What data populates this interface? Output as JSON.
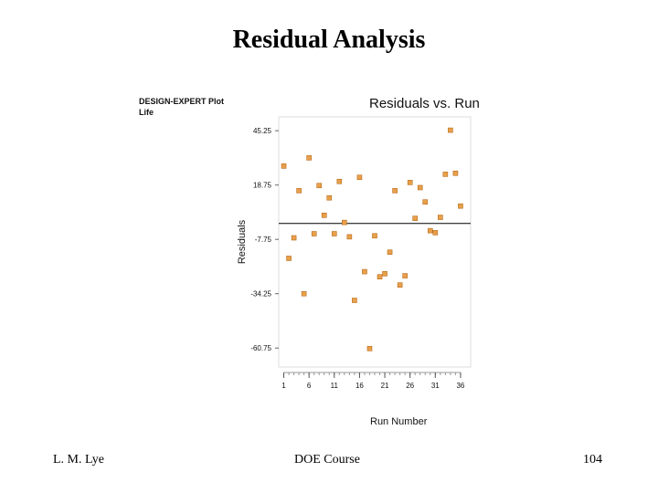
{
  "slide": {
    "title": "Residual Analysis",
    "footer_left": "L. M. Lye",
    "footer_center": "DOE  Course",
    "footer_right": "104"
  },
  "colors": {
    "point_fill": "#e8a04a",
    "point_stroke": "#b86a1a",
    "zero_line": "#000000",
    "frame": "#dddddd"
  },
  "chart_data": {
    "type": "scatter",
    "software_label": "DESIGN-EXPERT Plot",
    "response_label": "Life",
    "title": "Residuals vs. Run",
    "xlabel": "Run Number",
    "ylabel": "Residuals",
    "xlim": [
      0,
      38
    ],
    "ylim": [
      -70,
      52
    ],
    "x_ticks": [
      1,
      6,
      11,
      16,
      21,
      26,
      31,
      36
    ],
    "y_ticks": [
      45.25,
      18.75,
      -7.75,
      -34.25,
      -60.75
    ],
    "y_tick_labels": [
      "45.25",
      "18.75",
      "-7.75",
      "-34.25",
      "-60.75"
    ],
    "reference_line_y": 0,
    "points": [
      {
        "x": 1,
        "y": 28.0
      },
      {
        "x": 2,
        "y": -17.0
      },
      {
        "x": 3,
        "y": -7.0
      },
      {
        "x": 4,
        "y": 16.0
      },
      {
        "x": 5,
        "y": -34.25
      },
      {
        "x": 6,
        "y": 32.0
      },
      {
        "x": 7,
        "y": -5.0
      },
      {
        "x": 8,
        "y": 18.5
      },
      {
        "x": 9,
        "y": 4.0
      },
      {
        "x": 10,
        "y": 12.5
      },
      {
        "x": 11,
        "y": -5.0
      },
      {
        "x": 12,
        "y": 20.5
      },
      {
        "x": 13,
        "y": 0.5
      },
      {
        "x": 14,
        "y": -6.5
      },
      {
        "x": 15,
        "y": -37.5
      },
      {
        "x": 16,
        "y": 22.5
      },
      {
        "x": 17,
        "y": -23.5
      },
      {
        "x": 18,
        "y": -61.0
      },
      {
        "x": 19,
        "y": -6.0
      },
      {
        "x": 20,
        "y": -26.0
      },
      {
        "x": 21,
        "y": -24.5
      },
      {
        "x": 22,
        "y": -14.0
      },
      {
        "x": 23,
        "y": 16.0
      },
      {
        "x": 24,
        "y": -30.0
      },
      {
        "x": 25,
        "y": -25.5
      },
      {
        "x": 26,
        "y": 20.0
      },
      {
        "x": 27,
        "y": 2.5
      },
      {
        "x": 28,
        "y": 17.5
      },
      {
        "x": 29,
        "y": 10.5
      },
      {
        "x": 30,
        "y": -3.5
      },
      {
        "x": 31,
        "y": -4.5
      },
      {
        "x": 32,
        "y": 3.0
      },
      {
        "x": 33,
        "y": 24.0
      },
      {
        "x": 34,
        "y": 45.5
      },
      {
        "x": 35,
        "y": 24.5
      },
      {
        "x": 36,
        "y": 8.5
      }
    ]
  }
}
